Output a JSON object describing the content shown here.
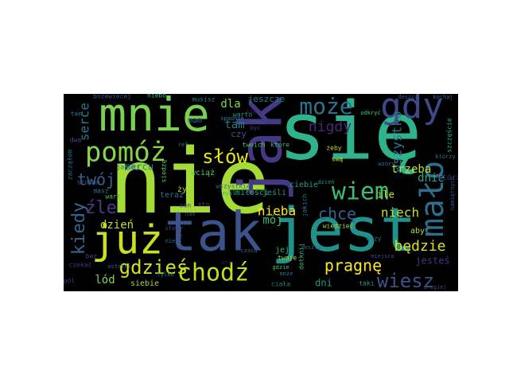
{
  "figure": {
    "background": "#000000",
    "page_background": "#ffffff",
    "colormap": "viridis"
  },
  "words": [
    {
      "text": "się",
      "color": "#2fb38c"
    },
    {
      "text": "nie",
      "color": "#a4db36"
    },
    {
      "text": "jest",
      "color": "#21918c"
    },
    {
      "text": "tak",
      "color": "#3b528b"
    },
    {
      "text": "jak",
      "color": "#443983"
    },
    {
      "text": "mnie",
      "color": "#7ad151"
    },
    {
      "text": "już",
      "color": "#c8e020"
    },
    {
      "text": "pomóż",
      "color": "#86d549"
    },
    {
      "text": "gdy",
      "color": "#3e4989"
    },
    {
      "text": "może",
      "color": "#2c728e"
    },
    {
      "text": "chodź",
      "color": "#bddf26"
    },
    {
      "text": "wiem",
      "color": "#3dbc74"
    },
    {
      "text": "mało",
      "color": "#2e6e8e"
    },
    {
      "text": "gdzieś",
      "color": "#d2e21b"
    },
    {
      "text": "słów",
      "color": "#e5e419"
    },
    {
      "text": "wiesz",
      "color": "#3b528b"
    },
    {
      "text": "kiedy",
      "color": "#31688e"
    },
    {
      "text": "twój",
      "color": "#355f8d"
    },
    {
      "text": "pragnę",
      "color": "#fde725"
    },
    {
      "text": "chcę",
      "color": "#34618d"
    },
    {
      "text": "nigdy",
      "color": "#482878"
    },
    {
      "text": "źle",
      "color": "#433e85"
    },
    {
      "text": "serce",
      "color": "#2a788e"
    },
    {
      "text": "niech",
      "color": "#c0df25"
    },
    {
      "text": "będzie",
      "color": "#dde318"
    },
    {
      "text": "wszystko",
      "color": "#2a768e"
    },
    {
      "text": "tam",
      "color": "#287c8e"
    },
    {
      "text": "dla",
      "color": "#86d549"
    },
    {
      "text": "nieba",
      "color": "#fde725"
    },
    {
      "text": "mój",
      "color": "#3bbb75"
    },
    {
      "text": "dzień",
      "color": "#c2df23"
    },
    {
      "text": "trzeba",
      "color": "#bade28"
    },
    {
      "text": "dnie",
      "color": "#25ac82"
    },
    {
      "text": "sercu",
      "color": "#23898e"
    },
    {
      "text": "lód",
      "color": "#84d44b"
    },
    {
      "text": "dni",
      "color": "#1e9b8a"
    },
    {
      "text": "ile",
      "color": "#d5e21a"
    },
    {
      "text": "jesteś",
      "color": "#46337e"
    },
    {
      "text": "jeszcze",
      "color": "#29798e"
    },
    {
      "text": "aby",
      "color": "#b5de2b"
    },
    {
      "text": "którą",
      "color": "#482878"
    },
    {
      "text": "jej",
      "color": "#31b57b"
    },
    {
      "text": "mam",
      "color": "#31688e"
    },
    {
      "text": "teraz",
      "color": "#2a788e"
    },
    {
      "text": "ciebie",
      "color": "#1fa187"
    },
    {
      "text": "wciąż",
      "color": "#5ec962"
    },
    {
      "text": "czy",
      "color": "#3b528b"
    },
    {
      "text": "jeśli",
      "color": "#21918c"
    },
    {
      "text": "miłości",
      "color": "#22a884"
    },
    {
      "text": "siebie",
      "color": "#a0da39"
    },
    {
      "text": "ciała",
      "color": "#27808e"
    },
    {
      "text": "taki",
      "color": "#1fa088"
    },
    {
      "text": "oczy",
      "color": "#2c728e"
    },
    {
      "text": "życ",
      "color": "#a8db34"
    },
    {
      "text": "kto",
      "color": "#46327e"
    },
    {
      "text": "sen",
      "color": "#3f4788"
    },
    {
      "text": "wart",
      "color": "#4ac16d"
    },
    {
      "text": "niebo",
      "color": "#2fb47c"
    },
    {
      "text": "bożewiecej",
      "color": "#3b528b"
    },
    {
      "text": "musisz",
      "color": "#26828e"
    },
    {
      "text": "warto",
      "color": "#1f9a8a"
    },
    {
      "text": "twoich",
      "color": "#4ec36b"
    },
    {
      "text": "które",
      "color": "#38b977"
    },
    {
      "text": "ten",
      "color": "#2b758e"
    },
    {
      "text": "żeby",
      "color": "#b8de29"
    },
    {
      "text": "swą",
      "color": "#d8e219"
    },
    {
      "text": "jakiej",
      "color": "#2d718e"
    },
    {
      "text": "siedzę",
      "color": "#5ec962"
    },
    {
      "text": "wszystkie",
      "color": "#2e6f8e"
    },
    {
      "text": "twoje",
      "color": "#a5db36"
    },
    {
      "text": "dotknij",
      "color": "#3fbc73"
    },
    {
      "text": "jakich",
      "color": "#2a768e"
    },
    {
      "text": "wiedzieć",
      "color": "#a2da37"
    },
    {
      "text": "zacząłem",
      "color": "#2d708e"
    },
    {
      "text": "masz",
      "color": "#2a778e"
    },
    {
      "text": "pól",
      "color": "#443a83"
    },
    {
      "text": "szczęście",
      "color": "#25ac82"
    },
    {
      "text": "czekać",
      "color": "#453581"
    },
    {
      "text": "bez",
      "color": "#404688"
    },
    {
      "text": "dwa",
      "color": "#3c4f8a"
    },
    {
      "text": "szukam",
      "color": "#3b528b"
    },
    {
      "text": "może",
      "color": "#31688e"
    },
    {
      "text": "myśl",
      "color": "#3fbc73"
    },
    {
      "text": "ref",
      "color": "#2d708e"
    },
    {
      "text": "nie",
      "color": "#2e6e8e"
    },
    {
      "text": "oni",
      "color": "#471365"
    },
    {
      "text": "być",
      "color": "#433d84"
    },
    {
      "text": "złe",
      "color": "#472a7a"
    },
    {
      "text": "nam",
      "color": "#3d4e8a"
    },
    {
      "text": "się",
      "color": "#481a6c"
    },
    {
      "text": "odkryć",
      "color": "#4ac16d"
    },
    {
      "text": "znów",
      "color": "#38588c"
    },
    {
      "text": "dzień",
      "color": "#21918c"
    },
    {
      "text": "namiętnych",
      "color": "#3d4d8a"
    },
    {
      "text": "którzy",
      "color": "#2d708e"
    },
    {
      "text": "deszcz",
      "color": "#3b528b"
    },
    {
      "text": "reszta",
      "color": "#31688e"
    },
    {
      "text": "gdzie",
      "color": "#4ac16d"
    },
    {
      "text": "czasu",
      "color": "#33638d"
    },
    {
      "text": "tylko",
      "color": "#2a788e"
    },
    {
      "text": "słowa",
      "color": "#404688"
    },
    {
      "text": "stopią",
      "color": "#34608d"
    },
    {
      "text": "spadnie",
      "color": "#26828e"
    },
    {
      "text": "kochaj",
      "color": "#31688e"
    },
    {
      "text": "drugiej",
      "color": "#3f4788"
    },
    {
      "text": "wzory",
      "color": "#2a788e"
    },
    {
      "text": "ostatni",
      "color": "#33638d"
    },
    {
      "text": "miejsca",
      "color": "#3f4788"
    }
  ]
}
